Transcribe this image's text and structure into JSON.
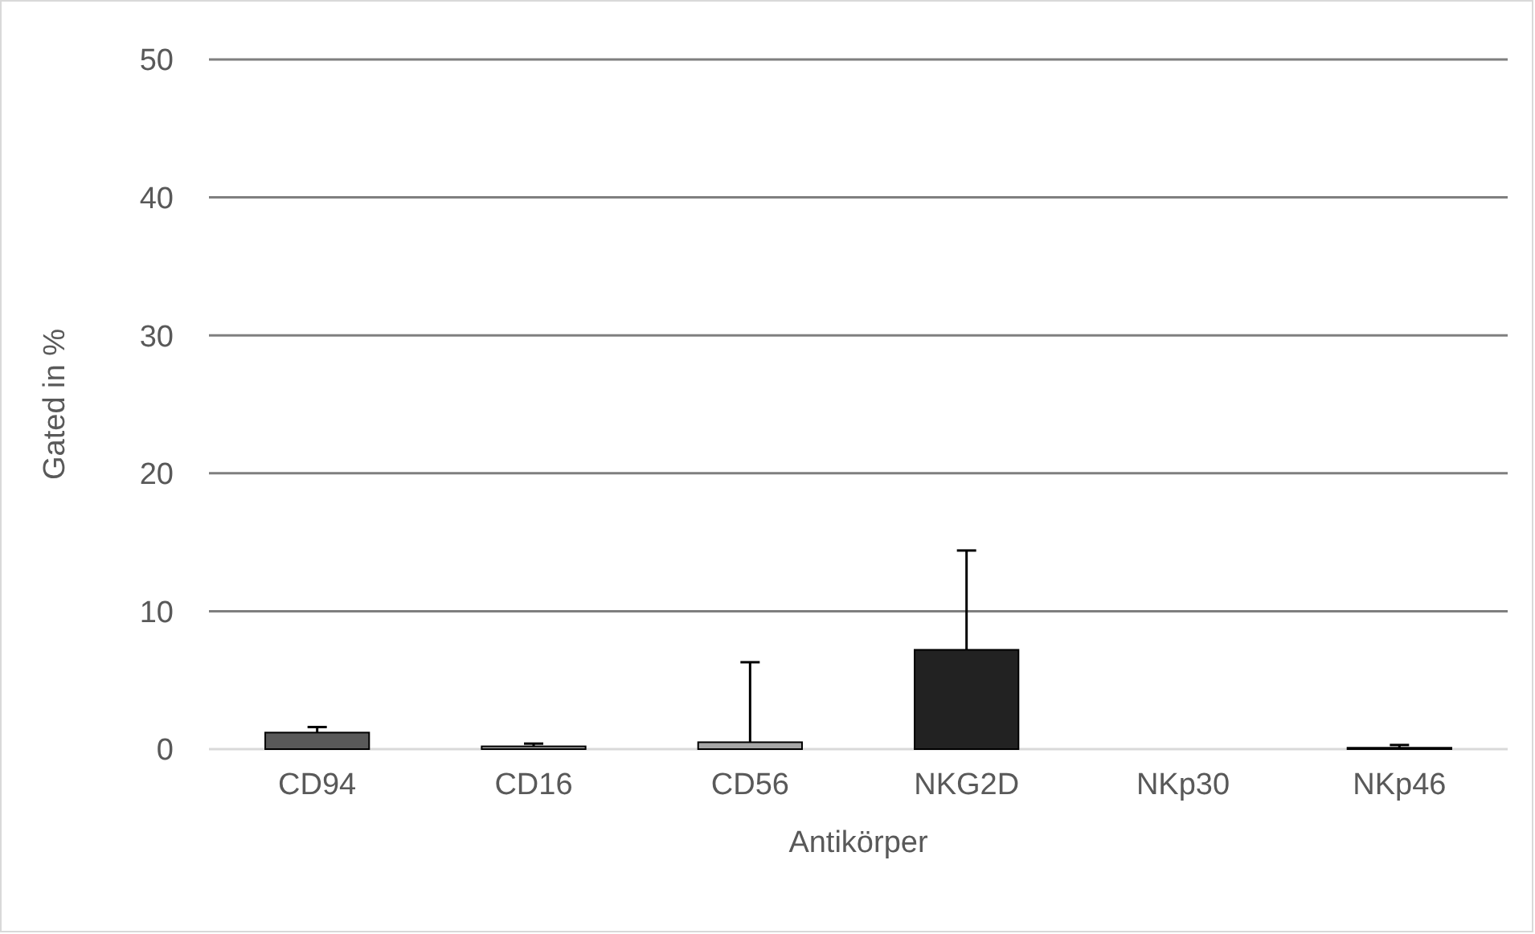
{
  "chart_data": {
    "type": "bar",
    "xlabel": "Antikörper",
    "ylabel": "Gated in %",
    "categories": [
      "CD94",
      "CD16",
      "CD56",
      "NKG2D",
      "NKp30",
      "NKp46"
    ],
    "values": [
      1.2,
      0.2,
      0.5,
      7.2,
      0,
      0.1
    ],
    "errors": [
      [
        1.2,
        1.6
      ],
      [
        0.2,
        0.4
      ],
      [
        0.5,
        6.3
      ],
      [
        7.2,
        14.4
      ],
      null,
      [
        0.1,
        0.3
      ]
    ],
    "colors": [
      "#595959",
      "#a6a6a6",
      "#a6a6a6",
      "#222222",
      "#bfbfbf",
      "#7f7f7f"
    ],
    "ylim": [
      0,
      50
    ],
    "yticks": [
      0,
      10,
      20,
      30,
      40,
      50
    ],
    "grid": "y"
  }
}
